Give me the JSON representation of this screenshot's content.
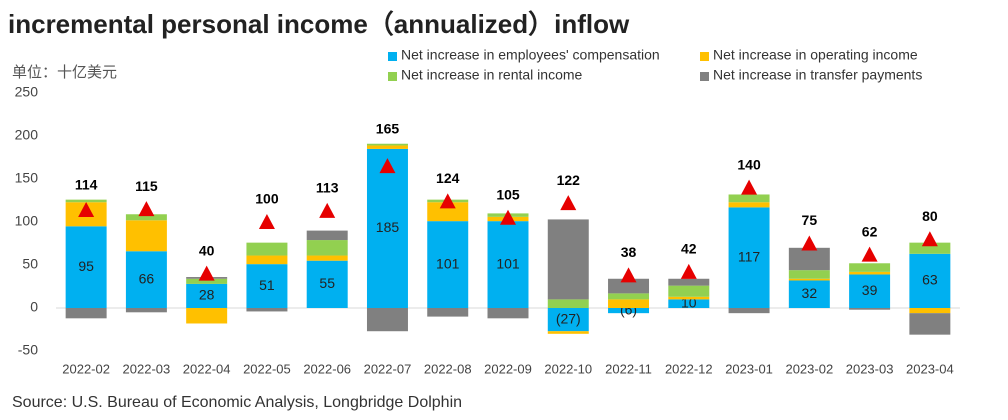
{
  "chart_data": {
    "type": "stacked-bar",
    "title": "incremental personal income（annualized）inflow",
    "y_axis_label": "单位：十亿美元",
    "source": "Source: U.S. Bureau of Economic Analysis, Longbridge Dolphin",
    "categories": [
      "2022-02",
      "2022-03",
      "2022-04",
      "2022-05",
      "2022-06",
      "2022-07",
      "2022-08",
      "2022-09",
      "2022-10",
      "2022-11",
      "2022-12",
      "2023-01",
      "2023-02",
      "2023-03",
      "2023-04"
    ],
    "series": [
      {
        "name": "Net increase in employees' compensation",
        "color": "#00b0f0",
        "values": [
          95,
          66,
          28,
          51,
          55,
          185,
          101,
          101,
          -27,
          -6,
          10,
          117,
          32,
          39,
          63
        ],
        "value_labels": [
          "95",
          "66",
          "28",
          "51",
          "55",
          "185",
          "101",
          "101",
          "(27)",
          "(6)",
          "10",
          "117",
          "32",
          "39",
          "63"
        ]
      },
      {
        "name": "Net increase in operating income",
        "color": "#ffc000",
        "values": [
          28,
          36,
          -18,
          10,
          6,
          4,
          22,
          5,
          -3,
          10,
          3,
          6,
          2,
          3,
          -6
        ]
      },
      {
        "name": "Net increase in rental income",
        "color": "#92d050",
        "values": [
          3,
          7,
          6,
          15,
          18,
          2,
          3,
          4,
          10,
          7,
          13,
          9,
          10,
          10,
          13
        ]
      },
      {
        "name": "Net increase in transfer payments",
        "color": "#808080",
        "values": [
          -12,
          -5,
          2,
          -4,
          11,
          -27,
          -10,
          -12,
          93,
          17,
          8,
          -6,
          26,
          -2,
          -25
        ]
      }
    ],
    "totals": {
      "color": "#e60000",
      "values": [
        114,
        115,
        40,
        100,
        113,
        165,
        124,
        105,
        122,
        38,
        42,
        140,
        75,
        62,
        80
      ]
    },
    "ylim": [
      -50,
      250
    ],
    "yticks": [
      -50,
      0,
      50,
      100,
      150,
      200,
      250
    ],
    "grid": false
  }
}
